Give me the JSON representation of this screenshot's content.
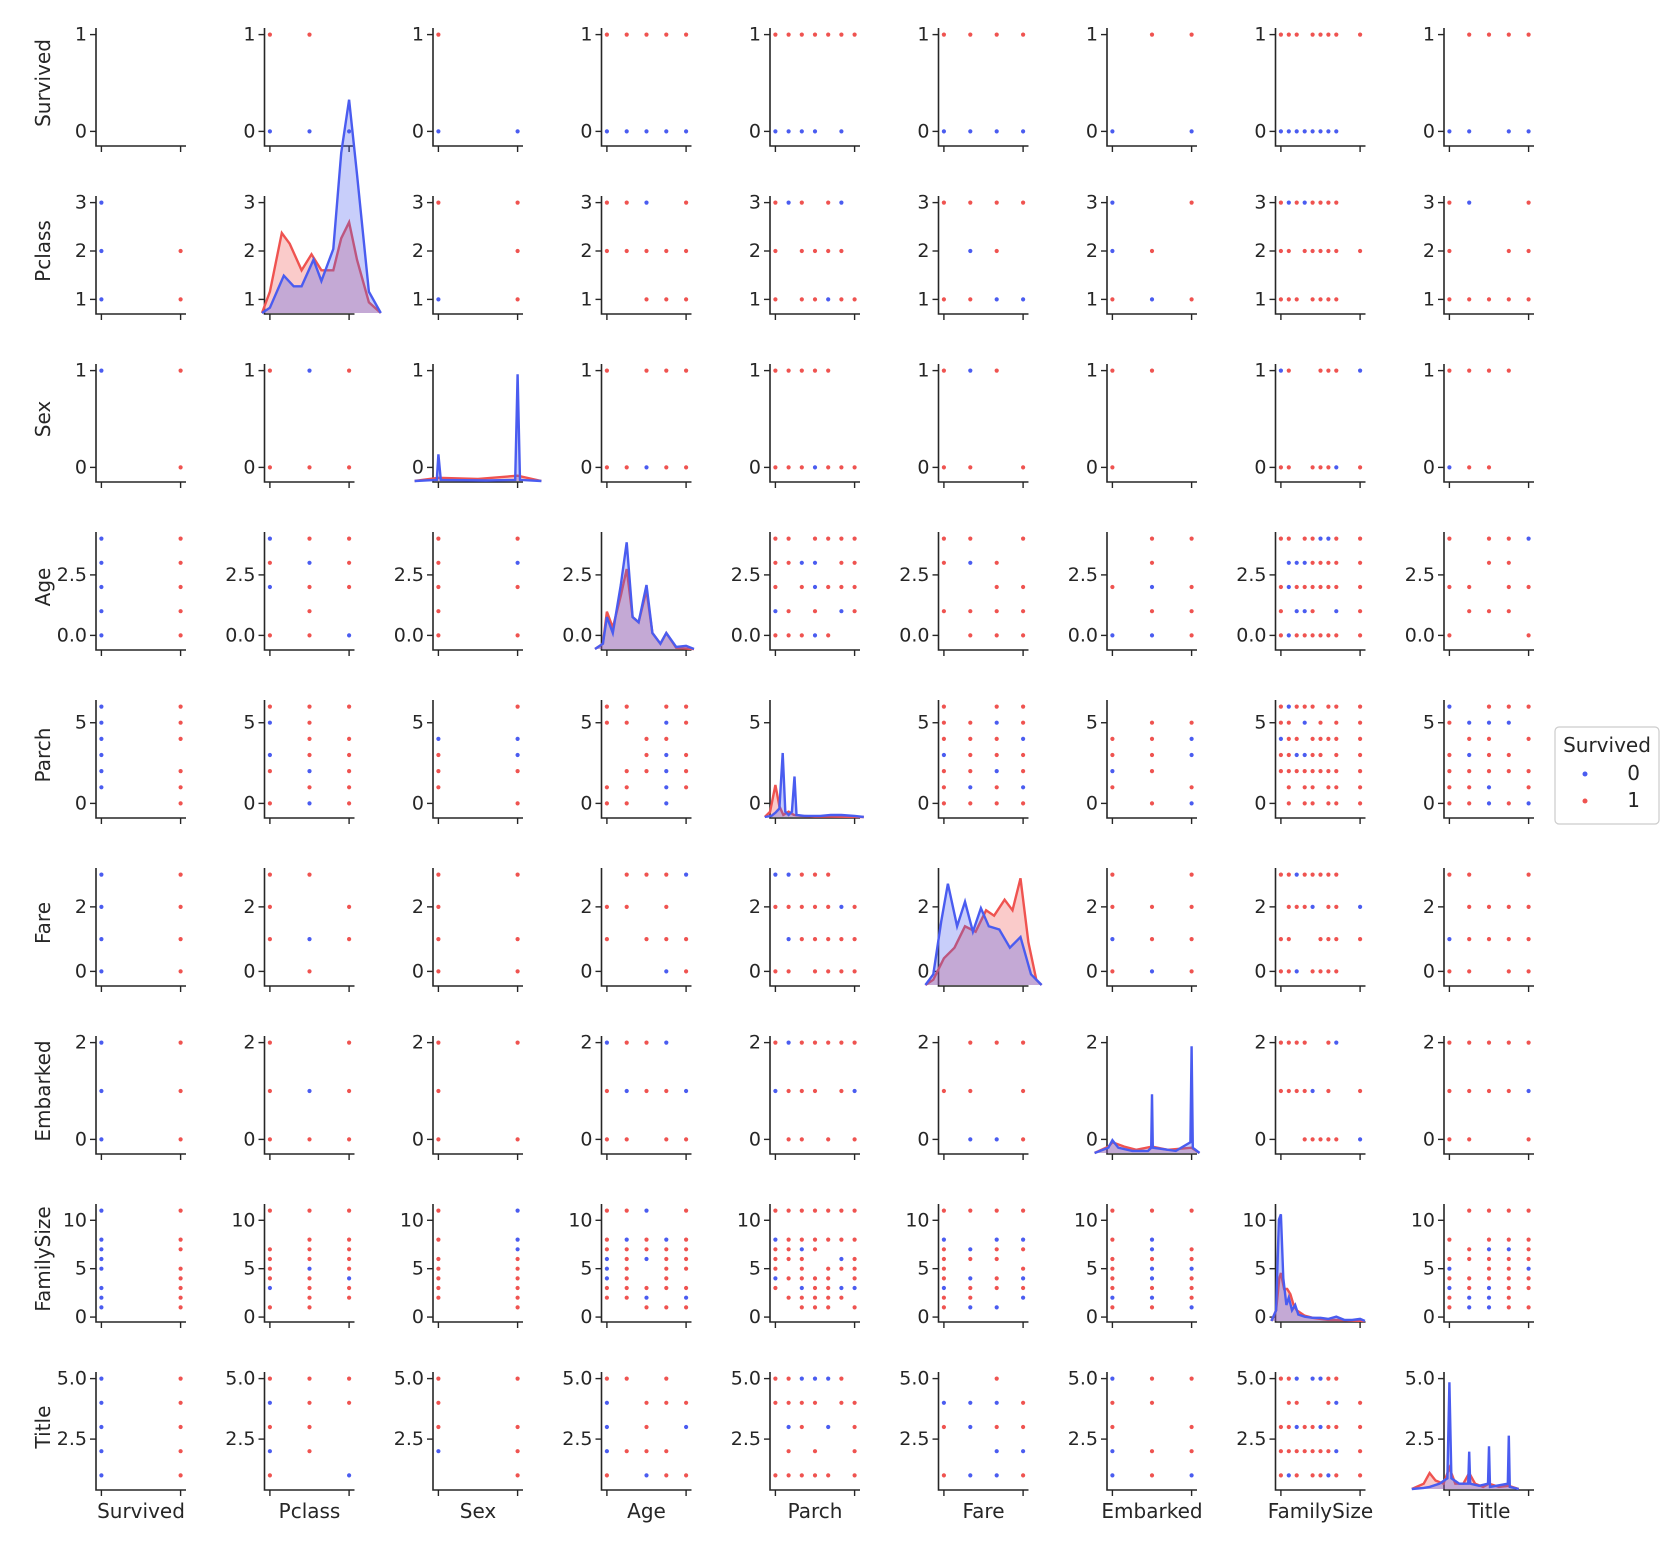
{
  "chart_data": {
    "type": "scatter",
    "kind": "pairplot",
    "title": "",
    "variables": [
      "Survived",
      "Pclass",
      "Sex",
      "Age",
      "Parch",
      "Fare",
      "Embarked",
      "FamilySize",
      "Title"
    ],
    "variable_ranges": {
      "Survived": [
        0,
        1
      ],
      "Pclass": [
        1,
        3
      ],
      "Sex": [
        0,
        1
      ],
      "Age": [
        0,
        4
      ],
      "Parch": [
        0,
        6
      ],
      "Fare": [
        0,
        3
      ],
      "Embarked": [
        0,
        2
      ],
      "FamilySize": [
        1,
        11
      ],
      "Title": [
        1,
        5
      ]
    },
    "y_ticks": {
      "Survived": [
        0,
        1
      ],
      "Pclass": [
        1,
        2,
        3
      ],
      "Sex": [
        0,
        1
      ],
      "Age": [
        0.0,
        2.5
      ],
      "Parch": [
        0,
        5
      ],
      "Fare": [
        0,
        2
      ],
      "Embarked": [
        0,
        2
      ],
      "FamilySize": [
        0,
        5,
        10
      ],
      "Title": [
        2.5,
        5.0
      ]
    },
    "y_tick_labels": {
      "Survived": [
        "0",
        "1"
      ],
      "Pclass": [
        "1",
        "2",
        "3"
      ],
      "Sex": [
        "0",
        "1"
      ],
      "Age": [
        "0.0",
        "2.5"
      ],
      "Parch": [
        "0",
        "5"
      ],
      "Fare": [
        "0",
        "2"
      ],
      "Embarked": [
        "0",
        "2"
      ],
      "FamilySize": [
        "0",
        "5",
        "10"
      ],
      "Title": [
        "2.5",
        "5.0"
      ]
    },
    "hue": "Survived",
    "legend": {
      "title": "Survived",
      "position": "right",
      "entries": [
        {
          "label": "0",
          "color": "#4a5cf0"
        },
        {
          "label": "1",
          "color": "#ef5350"
        }
      ]
    },
    "colors": {
      "class0": "#4a5cf0",
      "class1": "#ef5350"
    },
    "diagonal_kde": {
      "Survived": {
        "class0": [],
        "class1": []
      },
      "Pclass": {
        "class0": [
          [
            0.8,
            0
          ],
          [
            1.0,
            0.05
          ],
          [
            1.35,
            0.35
          ],
          [
            1.6,
            0.25
          ],
          [
            1.8,
            0.25
          ],
          [
            2.1,
            0.5
          ],
          [
            2.3,
            0.3
          ],
          [
            2.6,
            0.6
          ],
          [
            2.8,
            1.5
          ],
          [
            3.0,
            2.0
          ],
          [
            3.2,
            1.3
          ],
          [
            3.5,
            0.2
          ],
          [
            3.8,
            0
          ]
        ],
        "class1": [
          [
            0.8,
            0
          ],
          [
            1.0,
            0.2
          ],
          [
            1.3,
            0.75
          ],
          [
            1.5,
            0.65
          ],
          [
            1.8,
            0.4
          ],
          [
            2.05,
            0.55
          ],
          [
            2.3,
            0.4
          ],
          [
            2.6,
            0.4
          ],
          [
            2.8,
            0.7
          ],
          [
            3.0,
            0.85
          ],
          [
            3.2,
            0.5
          ],
          [
            3.5,
            0.1
          ],
          [
            3.8,
            0
          ]
        ]
      },
      "Sex": {
        "class0": [
          [
            -0.3,
            0
          ],
          [
            -0.02,
            0.01
          ],
          [
            0,
            0.25
          ],
          [
            0.03,
            0.01
          ],
          [
            0.6,
            0.005
          ],
          [
            0.97,
            0.01
          ],
          [
            1.0,
            1.0
          ],
          [
            1.03,
            0.01
          ],
          [
            1.3,
            0
          ]
        ],
        "class1": [
          [
            -0.3,
            0
          ],
          [
            0,
            0.03
          ],
          [
            0.5,
            0.02
          ],
          [
            1.0,
            0.05
          ],
          [
            1.3,
            0
          ]
        ]
      },
      "Age": {
        "class0": [
          [
            -0.6,
            0
          ],
          [
            -0.2,
            0.05
          ],
          [
            0,
            0.3
          ],
          [
            0.3,
            0.15
          ],
          [
            0.7,
            0.6
          ],
          [
            1.0,
            1.0
          ],
          [
            1.3,
            0.3
          ],
          [
            1.6,
            0.25
          ],
          [
            2.0,
            0.6
          ],
          [
            2.3,
            0.15
          ],
          [
            2.7,
            0.05
          ],
          [
            3.0,
            0.15
          ],
          [
            3.5,
            0.02
          ],
          [
            4.0,
            0.03
          ],
          [
            4.4,
            0
          ]
        ],
        "class1": [
          [
            -0.6,
            0
          ],
          [
            -0.2,
            0.05
          ],
          [
            0,
            0.35
          ],
          [
            0.3,
            0.2
          ],
          [
            0.7,
            0.5
          ],
          [
            1.0,
            0.75
          ],
          [
            1.3,
            0.3
          ],
          [
            1.6,
            0.25
          ],
          [
            2.0,
            0.55
          ],
          [
            2.3,
            0.15
          ],
          [
            2.7,
            0.05
          ],
          [
            3.0,
            0.15
          ],
          [
            3.5,
            0.01
          ],
          [
            4.4,
            0
          ]
        ]
      },
      "Parch": {
        "class0": [
          [
            -0.8,
            0
          ],
          [
            -0.3,
            0.01
          ],
          [
            0,
            0.04
          ],
          [
            0.3,
            0.08
          ],
          [
            0.55,
            0.6
          ],
          [
            0.75,
            0.05
          ],
          [
            1.0,
            0.02
          ],
          [
            1.25,
            0.05
          ],
          [
            1.45,
            0.38
          ],
          [
            1.6,
            0.02
          ],
          [
            2.2,
            0.01
          ],
          [
            3.4,
            0.01
          ],
          [
            4.2,
            0.02
          ],
          [
            5.0,
            0.02
          ],
          [
            6.0,
            0.01
          ],
          [
            6.7,
            0
          ]
        ],
        "class1": [
          [
            -0.8,
            0
          ],
          [
            -0.4,
            0.05
          ],
          [
            0,
            0.3
          ],
          [
            0.3,
            0.1
          ],
          [
            0.6,
            0.02
          ],
          [
            1.0,
            0.05
          ],
          [
            1.4,
            0.02
          ],
          [
            2.0,
            0.01
          ],
          [
            3.0,
            0.005
          ],
          [
            4.0,
            0.005
          ],
          [
            6.7,
            0
          ]
        ]
      },
      "Fare": {
        "class0": [
          [
            -0.7,
            0
          ],
          [
            -0.4,
            0.1
          ],
          [
            -0.1,
            0.6
          ],
          [
            0.15,
            0.95
          ],
          [
            0.5,
            0.55
          ],
          [
            0.8,
            0.78
          ],
          [
            1.1,
            0.5
          ],
          [
            1.4,
            0.72
          ],
          [
            1.7,
            0.55
          ],
          [
            2.1,
            0.52
          ],
          [
            2.5,
            0.35
          ],
          [
            2.9,
            0.45
          ],
          [
            3.3,
            0.1
          ],
          [
            3.7,
            0
          ]
        ],
        "class1": [
          [
            -0.7,
            0
          ],
          [
            -0.4,
            0.05
          ],
          [
            0,
            0.25
          ],
          [
            0.4,
            0.35
          ],
          [
            0.8,
            0.55
          ],
          [
            1.2,
            0.5
          ],
          [
            1.6,
            0.7
          ],
          [
            1.9,
            0.65
          ],
          [
            2.3,
            0.8
          ],
          [
            2.6,
            0.7
          ],
          [
            2.9,
            1.0
          ],
          [
            3.2,
            0.4
          ],
          [
            3.5,
            0.05
          ],
          [
            3.7,
            0
          ]
        ]
      },
      "Embarked": {
        "class0": [
          [
            -0.45,
            0
          ],
          [
            -0.1,
            0.05
          ],
          [
            0,
            0.12
          ],
          [
            0.15,
            0.05
          ],
          [
            0.5,
            0.02
          ],
          [
            0.9,
            0.02
          ],
          [
            0.98,
            0.05
          ],
          [
            1.0,
            0.55
          ],
          [
            1.02,
            0.05
          ],
          [
            1.6,
            0.02
          ],
          [
            1.97,
            0.1
          ],
          [
            2.0,
            1.0
          ],
          [
            2.03,
            0.05
          ],
          [
            2.2,
            0
          ]
        ],
        "class1": [
          [
            -0.45,
            0
          ],
          [
            -0.1,
            0.06
          ],
          [
            0,
            0.1
          ],
          [
            0.3,
            0.06
          ],
          [
            0.6,
            0.03
          ],
          [
            1.0,
            0.06
          ],
          [
            1.4,
            0.03
          ],
          [
            2.0,
            0.05
          ],
          [
            2.2,
            0
          ]
        ]
      },
      "FamilySize": {
        "class0": [
          [
            -0.2,
            0
          ],
          [
            0.4,
            0.1
          ],
          [
            0.75,
            0.95
          ],
          [
            1.0,
            1.0
          ],
          [
            1.3,
            0.4
          ],
          [
            1.7,
            0.15
          ],
          [
            2.0,
            0.22
          ],
          [
            2.4,
            0.1
          ],
          [
            2.8,
            0.15
          ],
          [
            3.2,
            0.06
          ],
          [
            4.0,
            0.04
          ],
          [
            5.0,
            0.03
          ],
          [
            6.0,
            0.03
          ],
          [
            7.0,
            0.02
          ],
          [
            8.0,
            0.04
          ],
          [
            9.0,
            0.01
          ],
          [
            10.0,
            0.01
          ],
          [
            11.0,
            0.02
          ],
          [
            11.6,
            0
          ]
        ],
        "class1": [
          [
            -0.2,
            0
          ],
          [
            0.4,
            0.1
          ],
          [
            0.8,
            0.4
          ],
          [
            1.0,
            0.45
          ],
          [
            1.4,
            0.3
          ],
          [
            1.8,
            0.3
          ],
          [
            2.2,
            0.25
          ],
          [
            2.6,
            0.15
          ],
          [
            3.0,
            0.1
          ],
          [
            4.0,
            0.05
          ],
          [
            5.0,
            0.03
          ],
          [
            6.0,
            0.02
          ],
          [
            7.0,
            0.01
          ],
          [
            8.0,
            0.01
          ],
          [
            11.6,
            0
          ]
        ]
      },
      "Title": {
        "class0": [
          [
            -0.9,
            0
          ],
          [
            -0.3,
            0.01
          ],
          [
            0,
            0.02
          ],
          [
            0.5,
            0.05
          ],
          [
            0.9,
            0.1
          ],
          [
            1.0,
            1.0
          ],
          [
            1.1,
            0.1
          ],
          [
            1.5,
            0.05
          ],
          [
            1.95,
            0.05
          ],
          [
            2.0,
            0.35
          ],
          [
            2.05,
            0.05
          ],
          [
            2.5,
            0.03
          ],
          [
            2.95,
            0.05
          ],
          [
            3.0,
            0.4
          ],
          [
            3.05,
            0.02
          ],
          [
            3.95,
            0.05
          ],
          [
            4.0,
            0.5
          ],
          [
            4.05,
            0.02
          ],
          [
            4.5,
            0
          ]
        ],
        "class1": [
          [
            -0.9,
            0
          ],
          [
            -0.3,
            0.05
          ],
          [
            0,
            0.15
          ],
          [
            0.3,
            0.08
          ],
          [
            0.7,
            0.05
          ],
          [
            1.0,
            0.2
          ],
          [
            1.3,
            0.05
          ],
          [
            1.7,
            0.05
          ],
          [
            2.0,
            0.15
          ],
          [
            2.3,
            0.05
          ],
          [
            2.7,
            0.02
          ],
          [
            3.0,
            0.05
          ],
          [
            3.5,
            0.02
          ],
          [
            4.0,
            0.03
          ],
          [
            4.5,
            0
          ]
        ]
      }
    },
    "scatter_grid": {
      "Survived": [
        0,
        1
      ],
      "Pclass": [
        1,
        2,
        3
      ],
      "Sex": [
        0,
        1
      ],
      "Age": [
        0,
        1,
        2,
        3,
        4
      ],
      "Parch": [
        0,
        1,
        2,
        3,
        4,
        5,
        6
      ],
      "Fare": [
        0,
        1,
        2,
        3
      ],
      "Embarked": [
        0,
        1,
        2
      ],
      "FamilySize": [
        1,
        2,
        3,
        4,
        5,
        6,
        7,
        8,
        11
      ],
      "Title": [
        1,
        2,
        3,
        4,
        5
      ]
    }
  }
}
